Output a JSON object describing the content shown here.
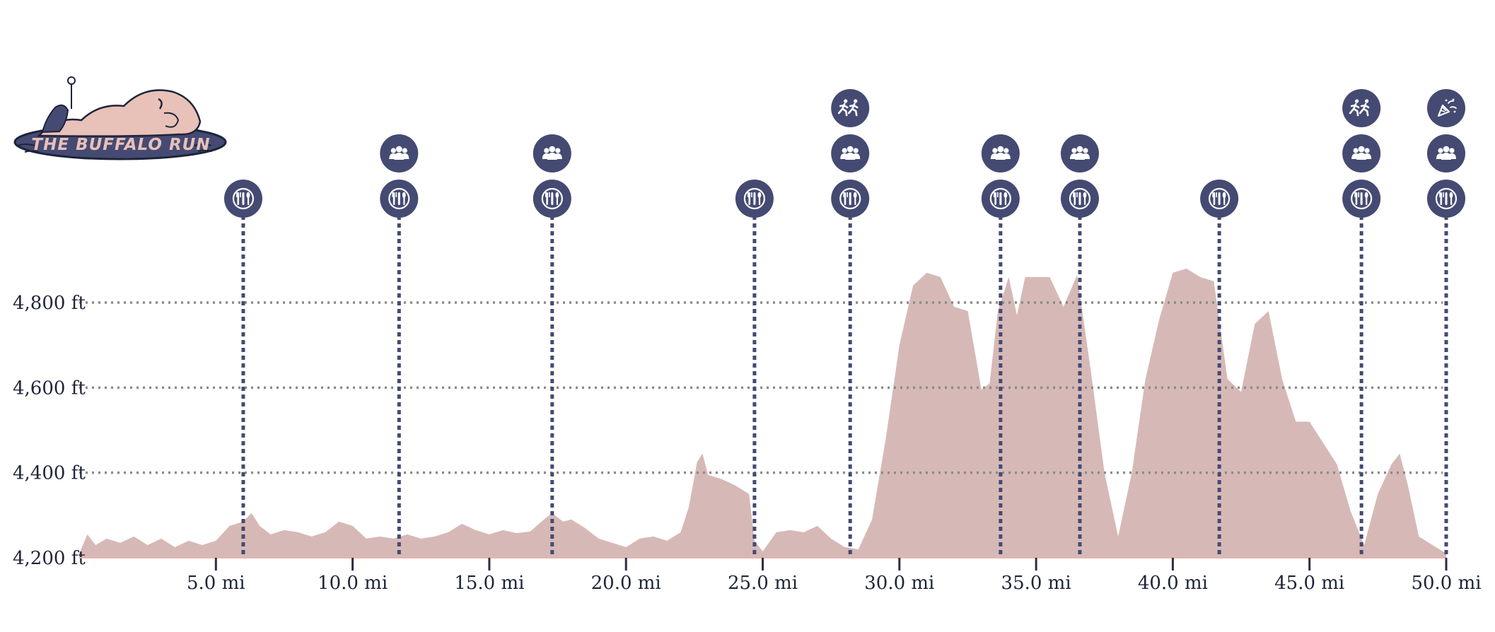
{
  "logo": {
    "text": "THE BUFFALO RUN"
  },
  "colors": {
    "profile": "#d6b9b6",
    "marker": "#454a73",
    "grid": "#8a8a8a",
    "text": "#1e2438"
  },
  "chart_data": {
    "type": "area",
    "title": "",
    "xlabel": "",
    "ylabel": "",
    "xlim": [
      0,
      50
    ],
    "ylim": [
      4200,
      4900
    ],
    "x_ticks": [
      5,
      10,
      15,
      20,
      25,
      30,
      35,
      40,
      45,
      50
    ],
    "x_tick_labels": [
      "5.0 mi",
      "10.0 mi",
      "15.0 mi",
      "20.0 mi",
      "25.0 mi",
      "30.0 mi",
      "35.0 mi",
      "40.0 mi",
      "45.0 mi",
      "50.0 mi"
    ],
    "y_ticks": [
      4200,
      4400,
      4600,
      4800
    ],
    "y_tick_labels": [
      "4,200 ft",
      "4,400 ft",
      "4,600 ft",
      "4,800 ft"
    ],
    "grid": true,
    "series": [
      {
        "x": [
          0,
          0.3,
          0.6,
          1,
          1.5,
          2,
          2.5,
          3,
          3.5,
          4,
          4.5,
          5,
          5.5,
          6,
          6.3,
          6.6,
          7,
          7.5,
          8,
          8.5,
          9,
          9.5,
          10,
          10.5,
          11,
          11.5,
          12,
          12.5,
          13,
          13.5,
          14,
          14.5,
          15,
          15.5,
          16,
          16.5,
          17,
          17.3,
          17.7,
          18,
          18.5,
          19,
          19.5,
          20,
          20.5,
          21,
          21.5,
          22,
          22.3,
          22.6,
          22.8,
          23,
          23.5,
          24,
          24.5,
          24.7,
          25,
          25.5,
          26,
          26.5,
          27,
          27.5,
          28,
          28.5,
          29,
          29.5,
          30,
          30.5,
          31,
          31.5,
          32,
          32.5,
          33,
          33.3,
          33.6,
          34,
          34.3,
          34.6,
          35,
          35.5,
          36,
          36.5,
          37,
          37.5,
          38,
          38.5,
          39,
          39.5,
          40,
          40.5,
          41,
          41.5,
          42,
          42.5,
          43,
          43.5,
          44,
          44.5,
          45,
          45.5,
          46,
          46.5,
          47,
          47.5,
          48,
          48.3,
          48.6,
          49,
          49.5,
          50
        ],
        "y": [
          4210,
          4255,
          4230,
          4245,
          4235,
          4250,
          4230,
          4245,
          4225,
          4240,
          4230,
          4240,
          4275,
          4285,
          4305,
          4275,
          4255,
          4265,
          4260,
          4250,
          4260,
          4285,
          4275,
          4245,
          4250,
          4245,
          4255,
          4245,
          4250,
          4260,
          4280,
          4265,
          4255,
          4265,
          4258,
          4262,
          4290,
          4305,
          4285,
          4290,
          4270,
          4245,
          4235,
          4225,
          4245,
          4250,
          4240,
          4260,
          4320,
          4425,
          4445,
          4395,
          4385,
          4370,
          4350,
          4240,
          4215,
          4260,
          4265,
          4260,
          4275,
          4245,
          4225,
          4220,
          4290,
          4480,
          4700,
          4840,
          4870,
          4860,
          4790,
          4780,
          4595,
          4610,
          4780,
          4860,
          4770,
          4860,
          4860,
          4860,
          4790,
          4865,
          4640,
          4400,
          4250,
          4400,
          4620,
          4760,
          4870,
          4880,
          4860,
          4850,
          4620,
          4590,
          4750,
          4780,
          4620,
          4520,
          4520,
          4470,
          4420,
          4310,
          4230,
          4350,
          4420,
          4445,
          4370,
          4250,
          4230,
          4210
        ]
      }
    ],
    "aid_stations": [
      {
        "mile": 6.0,
        "icons": [
          "food"
        ]
      },
      {
        "mile": 11.7,
        "icons": [
          "food",
          "crew"
        ]
      },
      {
        "mile": 17.3,
        "icons": [
          "food",
          "crew"
        ]
      },
      {
        "mile": 24.7,
        "icons": [
          "food"
        ]
      },
      {
        "mile": 28.2,
        "icons": [
          "food",
          "crew",
          "pacer"
        ]
      },
      {
        "mile": 33.7,
        "icons": [
          "food",
          "crew"
        ]
      },
      {
        "mile": 36.6,
        "icons": [
          "food",
          "crew"
        ]
      },
      {
        "mile": 41.7,
        "icons": [
          "food"
        ]
      },
      {
        "mile": 46.9,
        "icons": [
          "food",
          "crew",
          "pacer"
        ]
      },
      {
        "mile": 50.0,
        "icons": [
          "food",
          "crew",
          "finish"
        ]
      }
    ]
  }
}
